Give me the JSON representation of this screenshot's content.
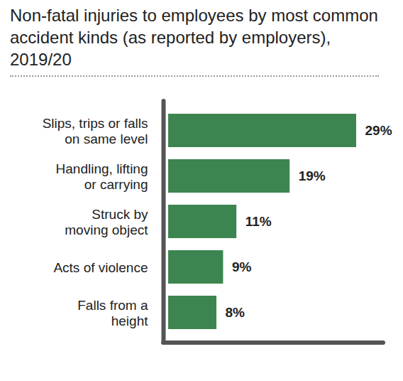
{
  "chart_data": {
    "type": "bar",
    "orientation": "horizontal",
    "title": "Non-fatal injuries to employees by most common accident kinds (as reported by employers), 2019/20",
    "categories": [
      "Slips, trips or falls\non same level",
      "Handling, lifting\nor carrying",
      "Struck by\nmoving object",
      "Acts of violence",
      "Falls from a\nheight"
    ],
    "values": [
      29,
      19,
      11,
      9,
      8
    ],
    "value_labels": [
      "29%",
      "19%",
      "11%",
      "9%",
      "8%"
    ],
    "data_labels": true,
    "color": "#3d8550",
    "tick_labels": "y",
    "grid": false
  }
}
